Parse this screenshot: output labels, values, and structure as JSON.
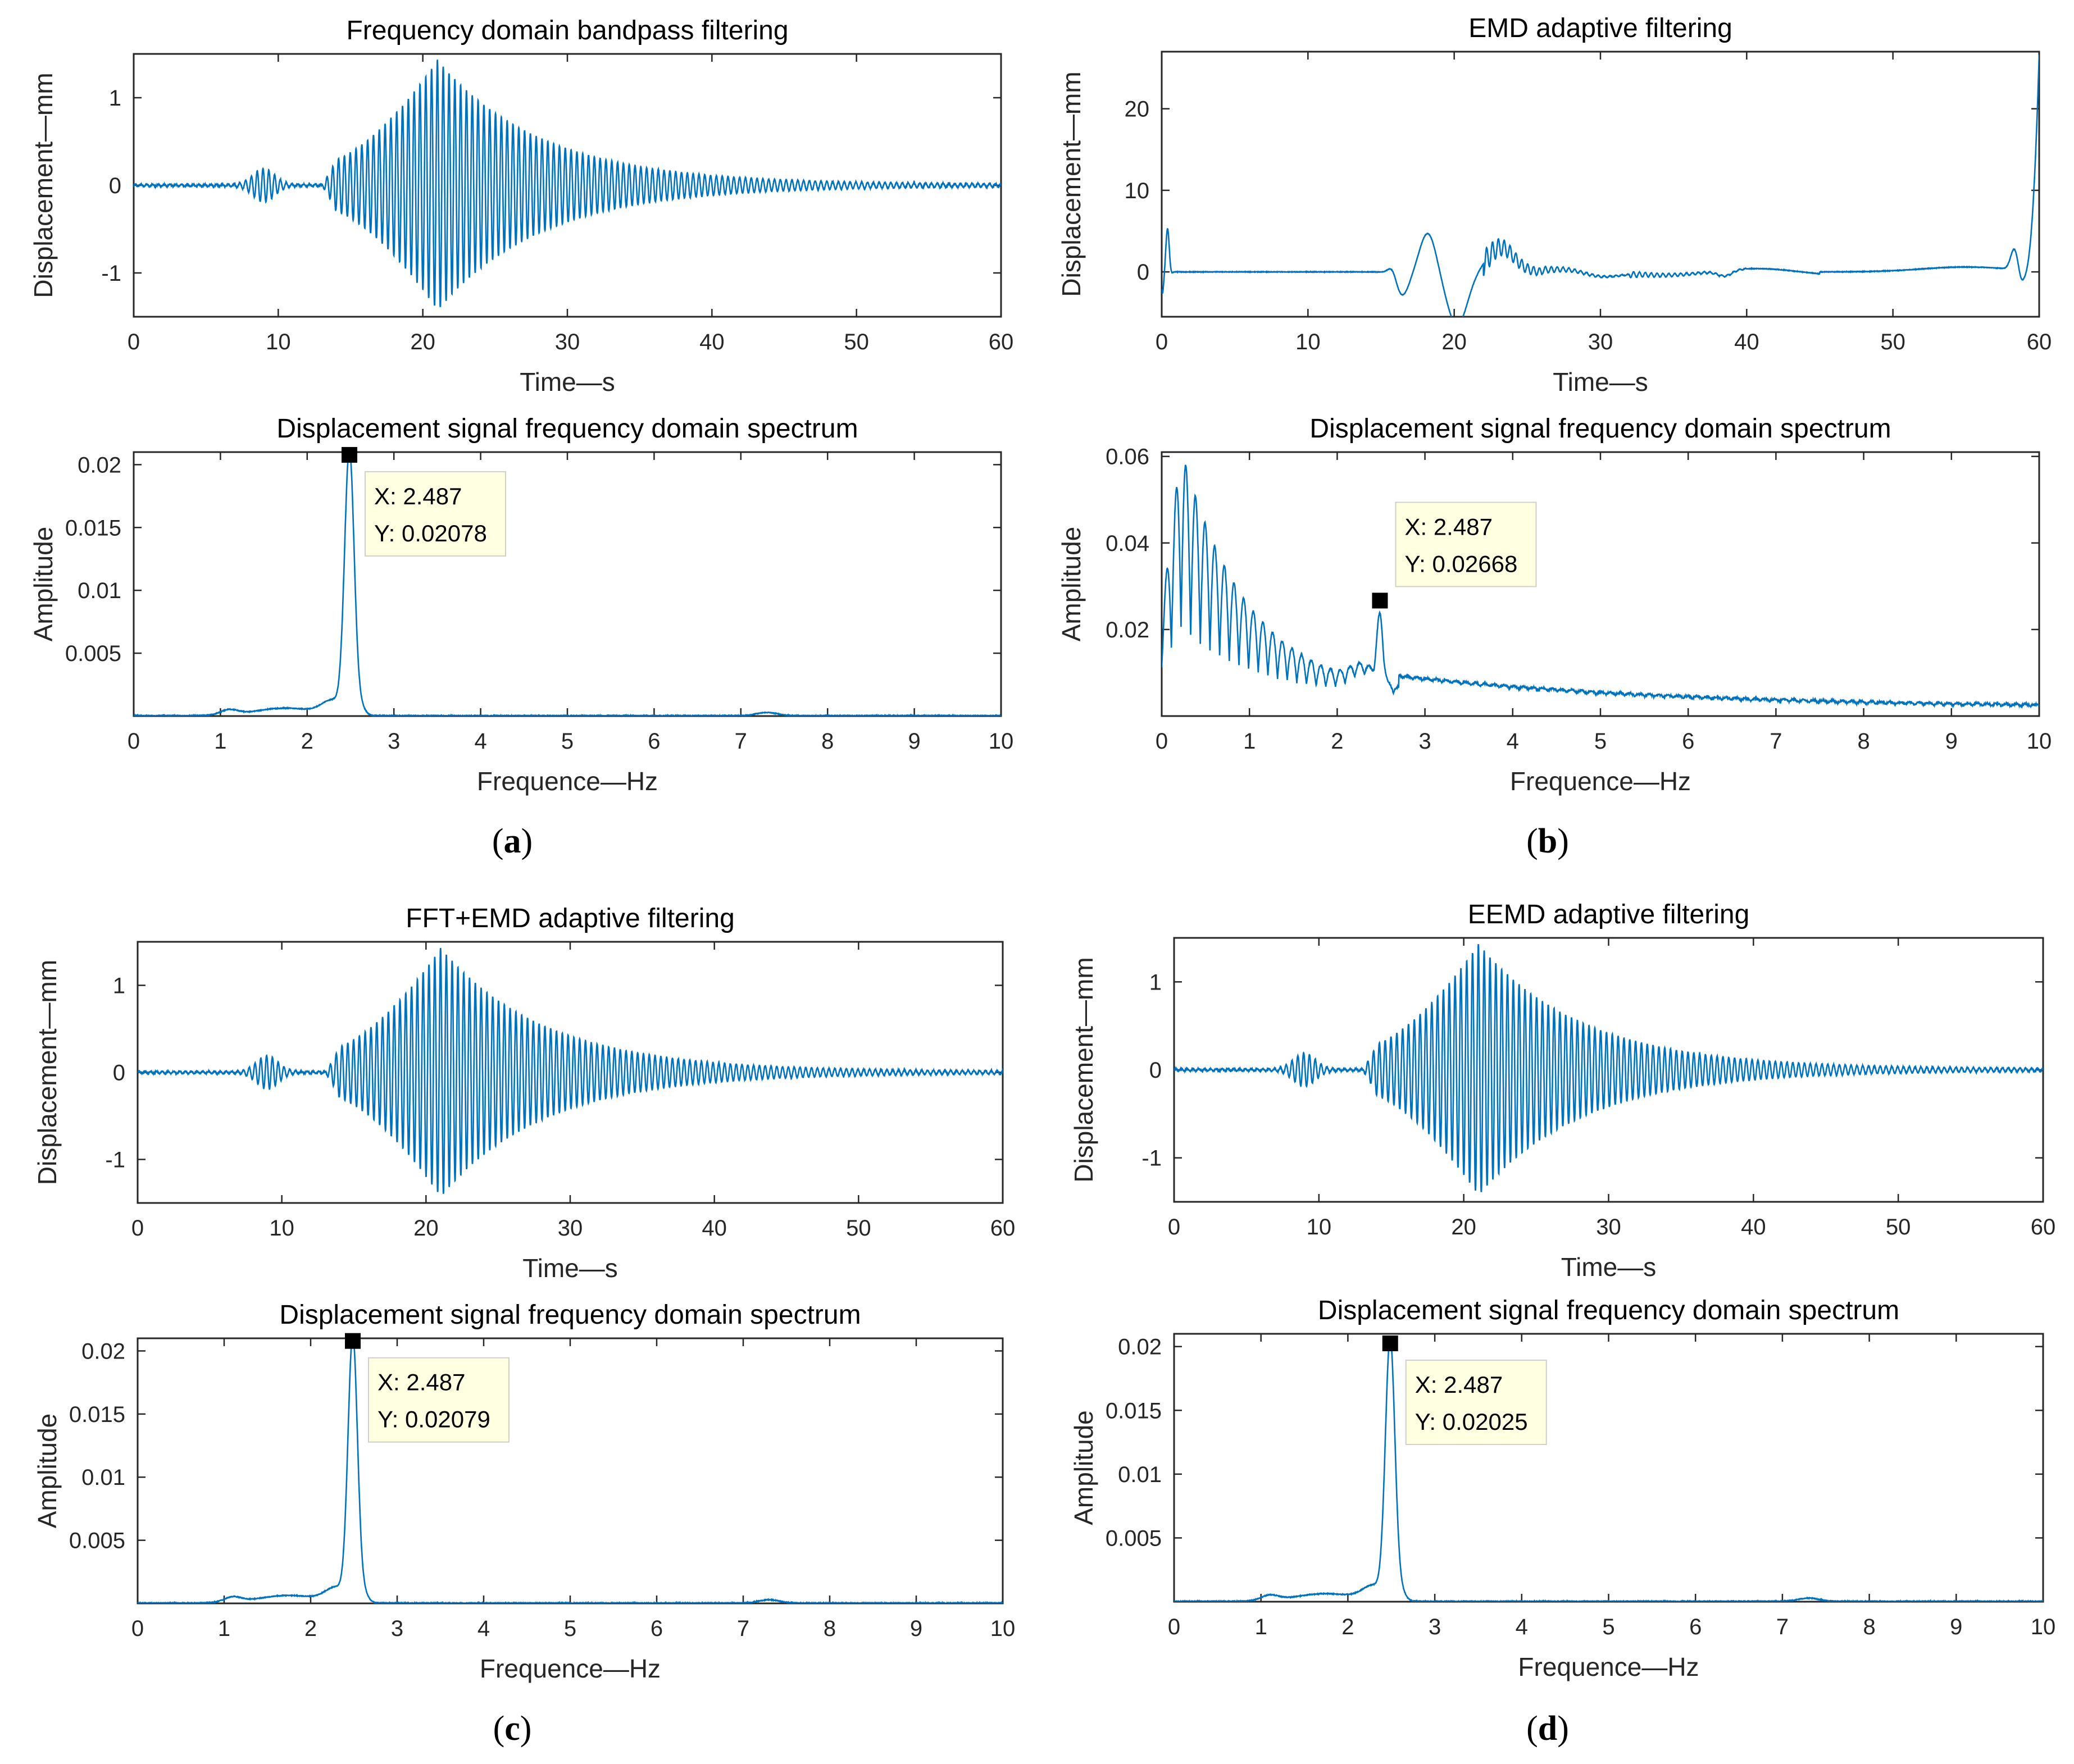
{
  "figure": {
    "signal_color": "#0072BD",
    "axes_color": "#262626",
    "datatip_bg": "#FFFFE1"
  },
  "chart_data": [
    {
      "id": "a",
      "caption": "a",
      "time": {
        "type": "line",
        "title": "Frequency domain bandpass filtering",
        "xlabel": "Time—s",
        "ylabel": "Displacement—mm",
        "xlim": [
          0,
          60
        ],
        "ylim": [
          -1.5,
          1.5
        ],
        "xticks": [
          0,
          10,
          20,
          30,
          40,
          50,
          60
        ],
        "yticks": [
          -1,
          0,
          1
        ],
        "signal": {
          "kind": "decay",
          "peak_time": 21,
          "peak_amp": 1.42,
          "freq_hz": 2.487,
          "precursor_time": 9,
          "precursor_amp": 0.18
        }
      },
      "spectrum": {
        "type": "line",
        "title": "Displacement signal frequency domain spectrum",
        "xlabel": "Frequence—Hz",
        "ylabel": "Amplitude",
        "xlim": [
          0,
          10
        ],
        "ylim": [
          0,
          0.021
        ],
        "xticks": [
          0,
          1,
          2,
          3,
          4,
          5,
          6,
          7,
          8,
          9,
          10
        ],
        "yticks": [
          0.005,
          0.01,
          0.015,
          0.02
        ],
        "ytick_labels": [
          "0.005",
          "0.01",
          "0.015",
          "0.02"
        ],
        "peak": {
          "x": 2.487,
          "y": 0.02078
        },
        "datatip": {
          "x_text": "X: 2.487",
          "y_text": "Y: 0.02078"
        }
      }
    },
    {
      "id": "b",
      "caption": "b",
      "time": {
        "type": "line",
        "title": "EMD adaptive filtering",
        "xlabel": "Time—s",
        "ylabel": "Displacement—mm",
        "xlim": [
          0,
          60
        ],
        "ylim": [
          -5.5,
          27
        ],
        "xticks": [
          0,
          10,
          20,
          30,
          40,
          50,
          60
        ],
        "yticks": [
          0,
          10,
          20
        ],
        "signal": {
          "kind": "emd",
          "end_value": 26.5
        }
      },
      "spectrum": {
        "type": "line",
        "title": "Displacement signal frequency domain spectrum",
        "xlabel": "Frequence—Hz",
        "ylabel": "Amplitude",
        "xlim": [
          0,
          10
        ],
        "ylim": [
          0,
          0.061
        ],
        "xticks": [
          0,
          1,
          2,
          3,
          4,
          5,
          6,
          7,
          8,
          9,
          10
        ],
        "yticks": [
          0.02,
          0.04,
          0.06
        ],
        "ytick_labels": [
          "0.02",
          "0.04",
          "0.06"
        ],
        "peak": {
          "x": 2.487,
          "y": 0.02668
        },
        "datatip": {
          "x_text": "X: 2.487",
          "y_text": "Y: 0.02668"
        }
      }
    },
    {
      "id": "c",
      "caption": "c",
      "time": {
        "type": "line",
        "title": "FFT+EMD adaptive filtering",
        "xlabel": "Time—s",
        "ylabel": "Displacement—mm",
        "xlim": [
          0,
          60
        ],
        "ylim": [
          -1.5,
          1.5
        ],
        "xticks": [
          0,
          10,
          20,
          30,
          40,
          50,
          60
        ],
        "yticks": [
          -1,
          0,
          1
        ],
        "signal": {
          "kind": "decay",
          "peak_time": 21,
          "peak_amp": 1.42,
          "freq_hz": 2.487,
          "precursor_time": 9,
          "precursor_amp": 0.18
        }
      },
      "spectrum": {
        "type": "line",
        "title": "Displacement signal frequency domain spectrum",
        "xlabel": "Frequence—Hz",
        "ylabel": "Amplitude",
        "xlim": [
          0,
          10
        ],
        "ylim": [
          0,
          0.021
        ],
        "xticks": [
          0,
          1,
          2,
          3,
          4,
          5,
          6,
          7,
          8,
          9,
          10
        ],
        "yticks": [
          0.005,
          0.01,
          0.015,
          0.02
        ],
        "ytick_labels": [
          "0.005",
          "0.01",
          "0.015",
          "0.02"
        ],
        "peak": {
          "x": 2.487,
          "y": 0.02079
        },
        "datatip": {
          "x_text": "X: 2.487",
          "y_text": "Y: 0.02079"
        }
      }
    },
    {
      "id": "d",
      "caption": "d",
      "time": {
        "type": "line",
        "title": "EEMD adaptive filtering",
        "xlabel": "Time—s",
        "ylabel": "Displacement—mm",
        "xlim": [
          0,
          60
        ],
        "ylim": [
          -1.5,
          1.5
        ],
        "xticks": [
          0,
          10,
          20,
          30,
          40,
          50,
          60
        ],
        "yticks": [
          -1,
          0,
          1
        ],
        "signal": {
          "kind": "decay",
          "peak_time": 21,
          "peak_amp": 1.42,
          "freq_hz": 2.487,
          "precursor_time": 9,
          "precursor_amp": 0.18
        }
      },
      "spectrum": {
        "type": "line",
        "title": "Displacement signal frequency domain spectrum",
        "xlabel": "Frequence—Hz",
        "ylabel": "Amplitude",
        "xlim": [
          0,
          10
        ],
        "ylim": [
          0,
          0.021
        ],
        "xticks": [
          0,
          1,
          2,
          3,
          4,
          5,
          6,
          7,
          8,
          9,
          10
        ],
        "yticks": [
          0.005,
          0.01,
          0.015,
          0.02
        ],
        "ytick_labels": [
          "0.005",
          "0.01",
          "0.015",
          "0.02"
        ],
        "peak": {
          "x": 2.487,
          "y": 0.02025
        },
        "datatip": {
          "x_text": "X: 2.487",
          "y_text": "Y: 0.02025"
        }
      }
    }
  ]
}
